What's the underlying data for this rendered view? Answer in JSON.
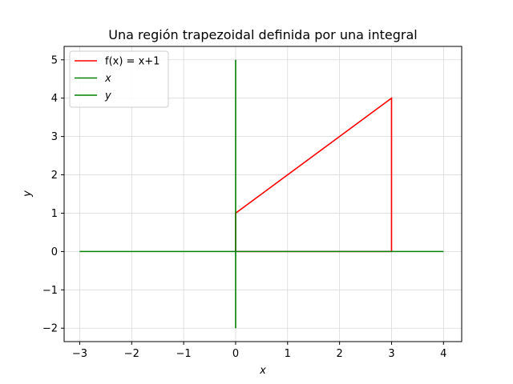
{
  "chart_data": {
    "type": "line",
    "title": "Una región trapezoidal definida por una integral",
    "xlabel": "x",
    "ylabel": "y",
    "xlim": [
      -3.3,
      4.35
    ],
    "ylim": [
      -2.35,
      5.35
    ],
    "xticks": [
      -3,
      -2,
      -1,
      0,
      1,
      2,
      3,
      4
    ],
    "xtick_labels": [
      "−3",
      "−2",
      "−1",
      "0",
      "1",
      "2",
      "3",
      "4"
    ],
    "yticks": [
      -2,
      -1,
      0,
      1,
      2,
      3,
      4,
      5
    ],
    "ytick_labels": [
      "−2",
      "−1",
      "0",
      "1",
      "2",
      "3",
      "4",
      "5"
    ],
    "grid": true,
    "legend_position": "top-left",
    "series": [
      {
        "name": "f(x) = x+1",
        "color": "#ff0000",
        "math": false,
        "x": [
          0,
          0,
          3,
          3,
          0
        ],
        "y": [
          0,
          1,
          4,
          0,
          0
        ]
      },
      {
        "name": "x",
        "color": "#008000",
        "math": true,
        "x": [
          -3,
          4
        ],
        "y": [
          0,
          0
        ]
      },
      {
        "name": "y",
        "color": "#008000",
        "math": true,
        "x": [
          0,
          0
        ],
        "y": [
          -2,
          5
        ]
      }
    ]
  }
}
